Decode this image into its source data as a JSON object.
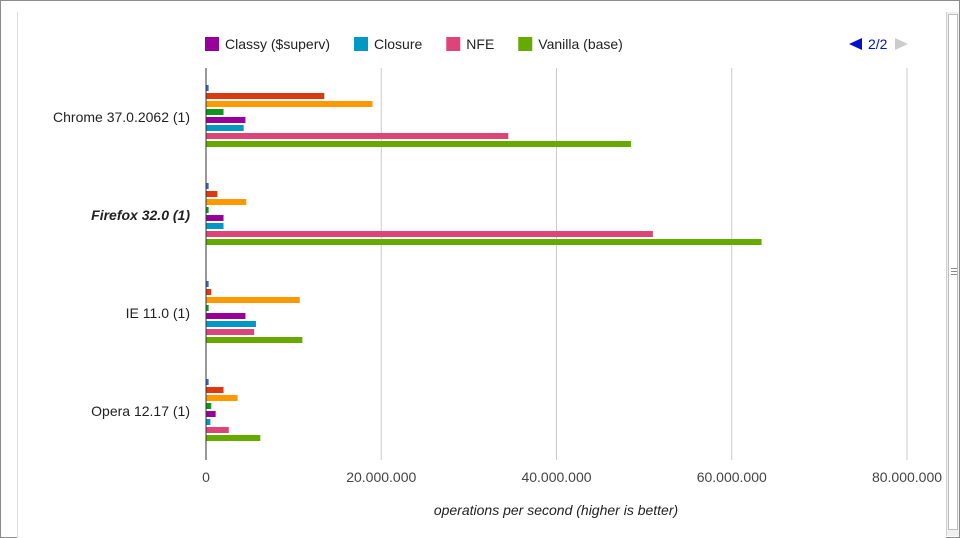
{
  "chart_data": {
    "type": "bar",
    "orientation": "horizontal",
    "categories": [
      "Chrome 37.0.2062 (1)",
      "Firefox 32.0 (1)",
      "IE 11.0 (1)",
      "Opera 12.17 (1)"
    ],
    "highlighted_category": "Firefox 32.0 (1)",
    "series": [
      {
        "name": "",
        "color": "#3366cc",
        "values": [
          300000,
          300000,
          300000,
          300000
        ]
      },
      {
        "name": "",
        "color": "#dc3912",
        "values": [
          13500000,
          1300000,
          600000,
          2000000
        ]
      },
      {
        "name": "",
        "color": "#ff9900",
        "values": [
          19000000,
          4600000,
          10700000,
          3600000
        ]
      },
      {
        "name": "",
        "color": "#109618",
        "values": [
          2000000,
          300000,
          300000,
          600000
        ]
      },
      {
        "name": "Classy ($superv)",
        "color": "#990099",
        "values": [
          4500000,
          2000000,
          4500000,
          1100000
        ]
      },
      {
        "name": "Closure",
        "color": "#0099c6",
        "values": [
          4300000,
          2000000,
          5700000,
          500000
        ]
      },
      {
        "name": "NFE",
        "color": "#dd4477",
        "values": [
          34500000,
          51000000,
          5500000,
          2600000
        ]
      },
      {
        "name": "Vanilla (base)",
        "color": "#66aa00",
        "values": [
          48500000,
          63400000,
          11000000,
          6200000
        ]
      }
    ],
    "xlim": [
      0,
      80000000
    ],
    "x_ticks": [
      0,
      20000000,
      40000000,
      60000000,
      80000000
    ],
    "x_tick_labels": [
      "0",
      "20.000.000",
      "40.000.000",
      "60.000.000",
      "80.000.000"
    ],
    "xlabel": "operations per second (higher is better)",
    "ylabel": "",
    "grid": true,
    "legend": {
      "placement": "top",
      "items": [
        {
          "label": "Classy ($superv)",
          "color": "#990099"
        },
        {
          "label": "Closure",
          "color": "#0099c6"
        },
        {
          "label": "NFE",
          "color": "#dd4477"
        },
        {
          "label": "Vanilla (base)",
          "color": "#66aa00"
        }
      ],
      "page": "2/2",
      "prev_color": "#0011cc",
      "next_color": "#cccccc"
    }
  }
}
